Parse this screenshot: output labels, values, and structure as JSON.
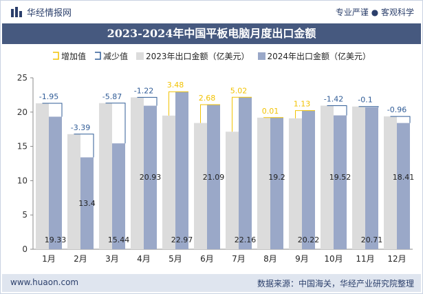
{
  "header": {
    "brand_name": "华经情报网",
    "tagline": "专业严谨 ● 客观科学"
  },
  "title": "2023-2024年中国平板电脑月度出口金额",
  "legend": {
    "increase": "增加值",
    "decrease": "减少值",
    "series_2023": "2023年出口金额（亿美元）",
    "series_2024": "2024年出口金额（亿美元）"
  },
  "footer": {
    "website": "www.huaon.com",
    "source": "数据来源：中国海关，华经产业研究院整理"
  },
  "colors": {
    "series_2023": "#dcdcdc",
    "series_2024": "#9aa8c8",
    "increase": "#f2c200",
    "decrease": "#2f5b96",
    "title_bar": "#46597f"
  },
  "chart_data": {
    "type": "bar",
    "categories": [
      "1月",
      "2月",
      "3月",
      "4月",
      "5月",
      "6月",
      "7月",
      "8月",
      "9月",
      "10月",
      "11月",
      "12月"
    ],
    "series": [
      {
        "name": "2023年出口金额（亿美元）",
        "values": [
          21.28,
          16.79,
          21.31,
          22.15,
          19.49,
          18.41,
          17.14,
          19.19,
          19.09,
          20.94,
          20.81,
          19.37
        ]
      },
      {
        "name": "2024年出口金额（亿美元）",
        "values": [
          19.33,
          13.4,
          15.44,
          20.93,
          22.97,
          21.09,
          22.16,
          19.2,
          20.22,
          19.52,
          20.71,
          18.41
        ]
      }
    ],
    "change_labels": [
      "-1.95",
      "-3.39",
      "-5.87",
      "-1.22",
      "3.48",
      "2.68",
      "5.02",
      "0.01",
      "1.13",
      "-1.42",
      "-0.1",
      "-0.96"
    ],
    "value_labels_2024": [
      "19.33",
      "13.4",
      "15.44",
      "20.93",
      "22.97",
      "21.09",
      "22.16",
      "19.2",
      "20.22",
      "19.52",
      "20.71",
      "18.41"
    ],
    "yticks": [
      "0",
      "5",
      "10",
      "15",
      "20",
      "25"
    ],
    "ylim": [
      0,
      25
    ],
    "grid": false,
    "legend_position": "top"
  }
}
